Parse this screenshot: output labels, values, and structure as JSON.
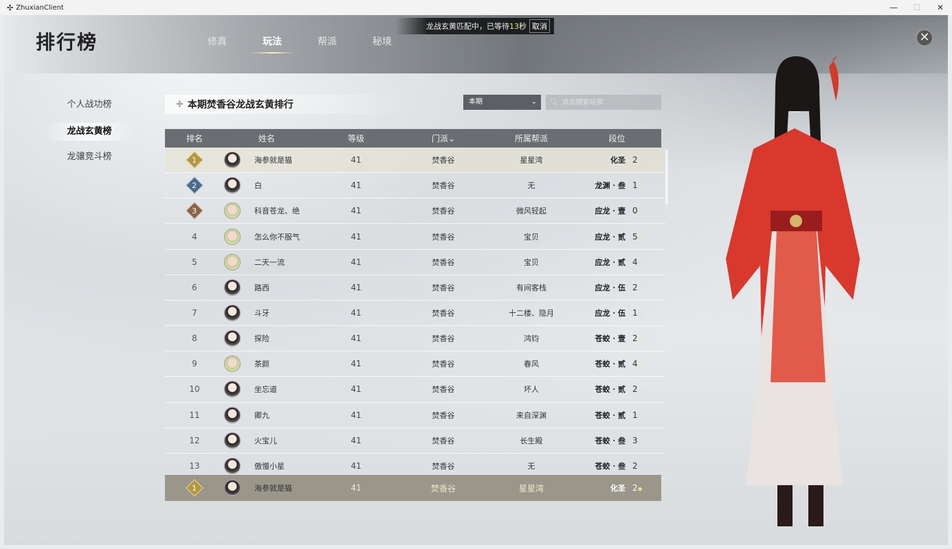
{
  "window": {
    "title": "ZhuxianClient",
    "icon": "app-icon",
    "controls": [
      "minimize",
      "maximize",
      "close"
    ]
  },
  "header": {
    "title": "排行榜",
    "tabs": [
      {
        "label": "修真"
      },
      {
        "label": "玩法",
        "active": true
      },
      {
        "label": "帮派"
      },
      {
        "label": "秘境"
      }
    ]
  },
  "matchmaking": {
    "prefix": "龙战玄黄匹配中，已等待",
    "seconds": "13",
    "suffix": "秒",
    "cancel_label": "取消"
  },
  "sidebar": {
    "items": [
      {
        "label": "个人战功榜"
      },
      {
        "label": "龙战玄黄榜",
        "active": true
      },
      {
        "label": "龙骧竞斗榜"
      }
    ]
  },
  "panel": {
    "title": "本期焚香谷龙战玄黄排行",
    "period": "本期",
    "search_placeholder": "点击搜索玩家"
  },
  "columns": [
    "排名",
    "姓名",
    "等级",
    "门派",
    "所属帮派",
    "段位"
  ],
  "medal_colors": {
    "1": "#b5973c",
    "2": "#4a6a8e",
    "3": "#8a6448"
  },
  "rows": [
    {
      "rank": "1",
      "name": "海参就是猫",
      "level": "41",
      "sect": "焚香谷",
      "guild": "星星湾",
      "tier": "化圣",
      "points": "2"
    },
    {
      "rank": "2",
      "name": "白",
      "level": "41",
      "sect": "焚香谷",
      "guild": "无",
      "tier": "龙渊 · 叁",
      "points": "1"
    },
    {
      "rank": "3",
      "name": "科音苍龙、绝",
      "level": "41",
      "sect": "焚香谷",
      "guild": "微风轻起",
      "tier": "应龙 · 壹",
      "points": "0"
    },
    {
      "rank": "4",
      "name": "怎么你不服气",
      "level": "41",
      "sect": "焚香谷",
      "guild": "宝贝",
      "tier": "应龙 · 贰",
      "points": "5"
    },
    {
      "rank": "5",
      "name": "二天一流",
      "level": "41",
      "sect": "焚香谷",
      "guild": "宝贝",
      "tier": "应龙 · 贰",
      "points": "4"
    },
    {
      "rank": "6",
      "name": "路西",
      "level": "41",
      "sect": "焚香谷",
      "guild": "有间客栈",
      "tier": "应龙 · 伍",
      "points": "2"
    },
    {
      "rank": "7",
      "name": "斗牙",
      "level": "41",
      "sect": "焚香谷",
      "guild": "十二楼、隐月",
      "tier": "应龙 · 伍",
      "points": "1"
    },
    {
      "rank": "8",
      "name": "探险",
      "level": "41",
      "sect": "焚香谷",
      "guild": "鸿钧",
      "tier": "苍蛟 · 壹",
      "points": "2"
    },
    {
      "rank": "9",
      "name": "茶颜",
      "level": "41",
      "sect": "焚香谷",
      "guild": "春风",
      "tier": "苍蛟 · 贰",
      "points": "4"
    },
    {
      "rank": "10",
      "name": "坐忘道",
      "level": "41",
      "sect": "焚香谷",
      "guild": "坏人",
      "tier": "苍蛟 · 贰",
      "points": "2"
    },
    {
      "rank": "11",
      "name": "卿九",
      "level": "41",
      "sect": "焚香谷",
      "guild": "来自深渊",
      "tier": "苍蛟 · 贰",
      "points": "1"
    },
    {
      "rank": "12",
      "name": "火宝儿",
      "level": "41",
      "sect": "焚香谷",
      "guild": "长生殿",
      "tier": "苍蛟 · 叁",
      "points": "3"
    },
    {
      "rank": "13",
      "name": "傲慢小星",
      "level": "41",
      "sect": "焚香谷",
      "guild": "无",
      "tier": "苍蛟 · 叁",
      "points": "2"
    }
  ],
  "my_row": {
    "rank": "1",
    "name": "海参就是猫",
    "level": "41",
    "sect": "焚香谷",
    "guild": "星星湾",
    "tier": "化圣",
    "points": "2"
  }
}
